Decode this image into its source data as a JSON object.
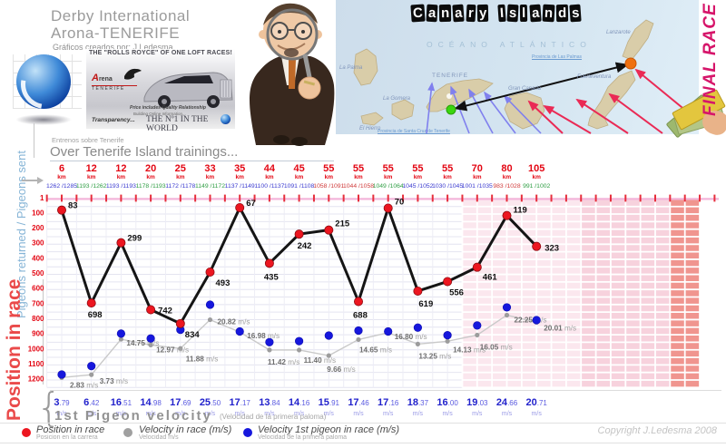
{
  "header": {
    "title_line1": "Derby International",
    "title_line2": "Arona-TENERIFE",
    "subtitle": "Gráficos creados por: J.Ledesma"
  },
  "banner": {
    "headline": "THE \"ROLLS ROYCE\" OF ONE LOFT RACES!",
    "logo_a": "A",
    "logo_rest": "rena",
    "logo_sub": "TENERIFE",
    "line1": "Price includes-Quality Relationship",
    "line2": "Building Online Information...",
    "line3": "Transparency...",
    "line4": "THE Nº1 IN THE WORLD"
  },
  "map": {
    "title": "Canary Islands",
    "ocean": "OCÉANO ATLÁNTICO",
    "labels": [
      {
        "text": "La Palma"
      },
      {
        "text": "TENERIFE"
      },
      {
        "text": "La Gomera"
      },
      {
        "text": "El Hierro"
      },
      {
        "text": "Gran Canaria"
      },
      {
        "text": "Fuerteventura"
      },
      {
        "text": "Lanzarote"
      },
      {
        "text": "Provincia de Las Palmas"
      },
      {
        "text": "Provincia de Santa Cruz de Tenerife"
      }
    ]
  },
  "final_race": "FINAL RACE",
  "trainings": {
    "es": "Entrenos sobre Tenerife",
    "en": "Over Tenerife Island trainings..."
  },
  "left_axis": {
    "pigeons": "Pigeons returned / Pigeons sent",
    "position": "Position in race"
  },
  "chart_data": {
    "type": "line",
    "title": "Over Tenerife Island trainings...",
    "x_km": [
      6,
      12,
      12,
      20,
      25,
      33,
      35,
      44,
      45,
      55,
      55,
      55,
      55,
      55,
      70,
      80,
      105
    ],
    "x_km_unit": "km",
    "returned_sent": [
      "1262 /1285",
      "1193 /1262",
      "1193 /1193",
      "1178 /1193",
      "1172 /1178",
      "1149 /1172",
      "1137 /1149",
      "1100 /1137",
      "1091 /1108",
      "1058 /1091",
      "1044 /1058",
      "1049 /1064",
      "1045 /1052",
      "1030 /1045",
      "1001 /1035",
      "983 /1028",
      "991 /1002"
    ],
    "returned_sent_colors": [
      "#3b3bd0",
      "#2f9e44",
      "#3b3bd0",
      "#2f9e44",
      "#3b3bd0",
      "#2f9e44",
      "#3b3bd0",
      "#3b3bd0",
      "#3b3bd0",
      "#d03b3b",
      "#d03b3b",
      "#2f9e44",
      "#3b3bd0",
      "#3b3bd0",
      "#3b3bd0",
      "#d03b3b",
      "#2f9e44"
    ],
    "ylabel": "Position in race",
    "ylim": [
      1,
      1200
    ],
    "y_ticks": [
      1,
      100,
      200,
      300,
      400,
      500,
      600,
      700,
      800,
      900,
      1000,
      1100,
      1200
    ],
    "grid": true,
    "unit": "m/s",
    "series": [
      {
        "name": "Position in race",
        "color": "#151515",
        "point_color": "#ec1620",
        "values": [
          83,
          698,
          299,
          742,
          834,
          493,
          67,
          435,
          242,
          215,
          688,
          70,
          619,
          556,
          461,
          119,
          323
        ],
        "label_offsets": [
          [
            7,
            -2
          ],
          [
            -4,
            16
          ],
          [
            7,
            -2
          ],
          [
            8,
            4
          ],
          [
            5,
            15
          ],
          [
            6,
            15
          ],
          [
            7,
            -2
          ],
          [
            -6,
            18
          ],
          [
            -2,
            16
          ],
          [
            7,
            -4
          ],
          [
            -6,
            18
          ],
          [
            7,
            -4
          ],
          [
            1,
            17
          ],
          [
            2,
            15
          ],
          [
            6,
            14
          ],
          [
            7,
            -3
          ],
          [
            9,
            5
          ]
        ]
      },
      {
        "name": "Velocity in race (m/s)",
        "color": "#c9c9c9",
        "point_color": "#9c9c9c",
        "values": [
          2.83,
          3.73,
          14.75,
          12.97,
          11.88,
          20.82,
          16.98,
          11.42,
          11.4,
          9.66,
          14.65,
          16.8,
          13.25,
          14.13,
          16.05,
          22.25,
          20.01
        ],
        "label_offsets": [
          [
            9,
            8
          ],
          [
            9,
            7
          ],
          [
            6,
            4
          ],
          [
            6,
            5
          ],
          [
            6,
            11
          ],
          [
            8,
            2
          ],
          [
            8,
            4
          ],
          [
            -2,
            13
          ],
          [
            5,
            11
          ],
          [
            -2,
            15
          ],
          [
            1,
            11
          ],
          [
            7,
            4
          ],
          [
            1,
            13
          ],
          [
            6,
            9
          ],
          [
            3,
            13
          ],
          [
            8,
            5
          ],
          [
            8,
            6
          ]
        ]
      },
      {
        "name": "Velocity 1st pigeon in race (m/s)",
        "color": "#1617dd",
        "point_color": "#1617dd",
        "values": [
          3.79,
          6.42,
          16.51,
          14.98,
          17.69,
          25.5,
          17.17,
          13.84,
          14.16,
          15.91,
          17.46,
          17.16,
          18.37,
          16.0,
          19.03,
          24.66,
          20.71
        ]
      }
    ]
  },
  "velocity_row": {
    "title": "1st Pigeon velocity",
    "subtitle": "(Velocidad de la primera paloma)",
    "unit": "m/s"
  },
  "legend": [
    {
      "label": "Position in race",
      "sub": "Posicion en la carrera",
      "color": "#ec1620"
    },
    {
      "label": "Velocity in race (m/s)",
      "sub": "Velocidad m/s",
      "color": "#a0a0a0"
    },
    {
      "label": "Velocity 1st pigeon in race (m/s)",
      "sub": "Velocidad de la primera paloma",
      "color": "#1617dd"
    }
  ],
  "copyright": "Copyright J.Ledesma 2008"
}
